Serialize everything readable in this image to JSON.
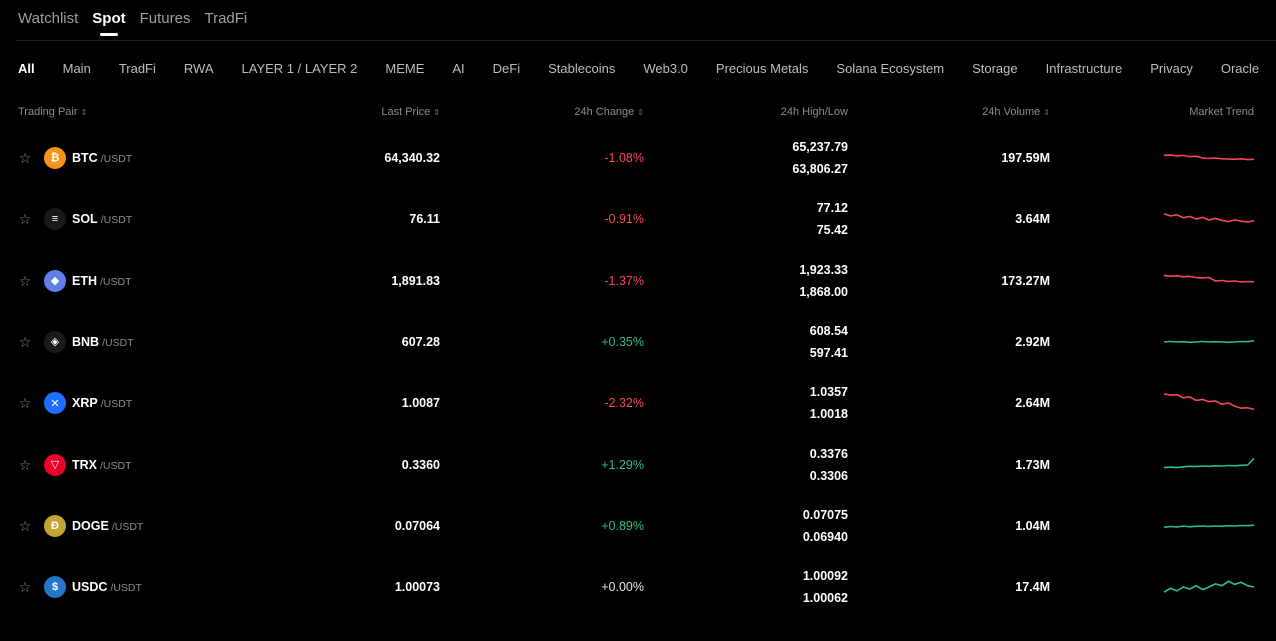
{
  "top_tabs": [
    {
      "label": "Watchlist",
      "active": false
    },
    {
      "label": "Spot",
      "active": true
    },
    {
      "label": "Futures",
      "active": false
    },
    {
      "label": "TradFi",
      "active": false
    }
  ],
  "categories": [
    {
      "label": "All",
      "active": true
    },
    {
      "label": "Main",
      "active": false
    },
    {
      "label": "TradFi",
      "active": false
    },
    {
      "label": "RWA",
      "active": false
    },
    {
      "label": "LAYER 1 / LAYER 2",
      "active": false
    },
    {
      "label": "MEME",
      "active": false
    },
    {
      "label": "AI",
      "active": false
    },
    {
      "label": "DeFi",
      "active": false
    },
    {
      "label": "Stablecoins",
      "active": false
    },
    {
      "label": "Web3.0",
      "active": false
    },
    {
      "label": "Precious Metals",
      "active": false
    },
    {
      "label": "Solana Ecosystem",
      "active": false
    },
    {
      "label": "Storage",
      "active": false
    },
    {
      "label": "Infrastructure",
      "active": false
    },
    {
      "label": "Privacy",
      "active": false
    },
    {
      "label": "Oracle",
      "active": false
    }
  ],
  "columns": {
    "pair": "Trading Pair",
    "price": "Last Price",
    "change": "24h Change",
    "highlow": "24h High/Low",
    "volume": "24h Volume",
    "trend": "Market Trend"
  },
  "rows": [
    {
      "base": "BTC",
      "quote": "/USDT",
      "price": "64,340.32",
      "change": "-1.08%",
      "direction": "down",
      "high": "65,237.79",
      "low": "63,806.27",
      "volume": "197.59M",
      "icon": "bitcoin-icon",
      "icon_color": "#f7931a",
      "icon_glyph": "₿",
      "trend": [
        0.6,
        0.62,
        0.58,
        0.6,
        0.55,
        0.57,
        0.5,
        0.48,
        0.5,
        0.47,
        0.46,
        0.45,
        0.47,
        0.44,
        0.45
      ]
    },
    {
      "base": "SOL",
      "quote": "/USDT",
      "price": "76.11",
      "change": "-0.91%",
      "direction": "down",
      "high": "77.12",
      "low": "75.42",
      "volume": "3.64M",
      "icon": "solana-icon",
      "icon_color": "#1a1a1a",
      "icon_glyph": "≡",
      "trend": [
        0.7,
        0.62,
        0.66,
        0.55,
        0.6,
        0.5,
        0.56,
        0.46,
        0.52,
        0.45,
        0.4,
        0.47,
        0.42,
        0.38,
        0.44
      ]
    },
    {
      "base": "ETH",
      "quote": "/USDT",
      "price": "1,891.83",
      "change": "-1.37%",
      "direction": "down",
      "high": "1,923.33",
      "low": "1,868.00",
      "volume": "173.27M",
      "icon": "ethereum-icon",
      "icon_color": "#627eea",
      "icon_glyph": "◆",
      "trend": [
        0.72,
        0.68,
        0.7,
        0.66,
        0.68,
        0.63,
        0.62,
        0.64,
        0.5,
        0.52,
        0.48,
        0.5,
        0.46,
        0.48,
        0.47
      ]
    },
    {
      "base": "BNB",
      "quote": "/USDT",
      "price": "607.28",
      "change": "+0.35%",
      "direction": "up",
      "high": "608.54",
      "low": "597.41",
      "volume": "2.92M",
      "icon": "bnb-icon",
      "icon_color": "#1a1a1a",
      "icon_glyph": "◈",
      "trend": [
        0.5,
        0.52,
        0.5,
        0.51,
        0.49,
        0.5,
        0.52,
        0.5,
        0.51,
        0.5,
        0.49,
        0.5,
        0.52,
        0.51,
        0.55
      ]
    },
    {
      "base": "XRP",
      "quote": "/USDT",
      "price": "1.0087",
      "change": "-2.32%",
      "direction": "down",
      "high": "1.0357",
      "low": "1.0018",
      "volume": "2.64M",
      "icon": "xrp-icon",
      "icon_color": "#1e6fff",
      "icon_glyph": "✕",
      "trend": [
        0.85,
        0.8,
        0.82,
        0.7,
        0.74,
        0.6,
        0.64,
        0.55,
        0.58,
        0.45,
        0.5,
        0.38,
        0.3,
        0.32,
        0.25
      ]
    },
    {
      "base": "TRX",
      "quote": "/USDT",
      "price": "0.3360",
      "change": "+1.29%",
      "direction": "up",
      "high": "0.3376",
      "low": "0.3306",
      "volume": "1.73M",
      "icon": "tron-icon",
      "icon_color": "#eb0029",
      "icon_glyph": "▽",
      "trend": [
        0.4,
        0.42,
        0.4,
        0.43,
        0.45,
        0.44,
        0.46,
        0.45,
        0.47,
        0.46,
        0.48,
        0.47,
        0.49,
        0.5,
        0.75
      ]
    },
    {
      "base": "DOGE",
      "quote": "/USDT",
      "price": "0.07064",
      "change": "+0.89%",
      "direction": "up",
      "high": "0.07075",
      "low": "0.06940",
      "volume": "1.04M",
      "icon": "dogecoin-icon",
      "icon_color": "#c2a633",
      "icon_glyph": "Ð",
      "trend": [
        0.45,
        0.48,
        0.46,
        0.5,
        0.47,
        0.49,
        0.5,
        0.48,
        0.5,
        0.49,
        0.51,
        0.5,
        0.52,
        0.51,
        0.53
      ]
    },
    {
      "base": "USDC",
      "quote": "/USDT",
      "price": "1.00073",
      "change": "+0.00%",
      "direction": "up",
      "high": "1.00092",
      "low": "1.00062",
      "volume": "17.4M",
      "icon": "usdc-icon",
      "icon_color": "#2775ca",
      "icon_glyph": "$",
      "trend": [
        0.3,
        0.45,
        0.35,
        0.5,
        0.42,
        0.55,
        0.4,
        0.5,
        0.62,
        0.55,
        0.72,
        0.6,
        0.68,
        0.55,
        0.5
      ]
    }
  ],
  "colors": {
    "down": "#f6465d",
    "up": "#2ebd85"
  }
}
